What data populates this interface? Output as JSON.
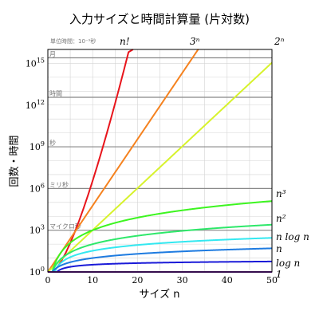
{
  "chart_data": {
    "type": "line",
    "title": "入力サイズと時間計算量 (片対数)",
    "xlabel": "サイズ n",
    "ylabel": "回数・時間",
    "y_scale": "log10",
    "xlim": [
      0,
      50
    ],
    "ylim_exponent": [
      0,
      16
    ],
    "x_ticks": [
      "0",
      "10",
      "20",
      "30",
      "40",
      "50"
    ],
    "y_ticks": [
      {
        "base": "10",
        "exp": "0"
      },
      {
        "base": "10",
        "exp": "3"
      },
      {
        "base": "10",
        "exp": "6"
      },
      {
        "base": "10",
        "exp": "9"
      },
      {
        "base": "10",
        "exp": "12"
      },
      {
        "base": "10",
        "exp": "15"
      }
    ],
    "grid": true,
    "note": "単位時間：10⁻⁹秒",
    "reference_lines": [
      {
        "label": "月",
        "log10_value": 15.4
      },
      {
        "label": "時間",
        "log10_value": 12.56
      },
      {
        "label": "秒",
        "log10_value": 9
      },
      {
        "label": "ミリ秒",
        "log10_value": 6
      },
      {
        "label": "マイクロ秒",
        "log10_value": 3
      }
    ],
    "series": [
      {
        "name": "n!",
        "formula": "factorial",
        "color": "#e8141b"
      },
      {
        "name": "3ⁿ",
        "formula": "exp3",
        "color": "#f5821f"
      },
      {
        "name": "2ⁿ",
        "formula": "exp2",
        "color": "#d7f22c"
      },
      {
        "name": "n³",
        "formula": "cube",
        "color": "#3df520"
      },
      {
        "name": "n²",
        "formula": "square",
        "color": "#2ee86a"
      },
      {
        "name": "n log n",
        "formula": "nlogn",
        "color": "#33e8f0"
      },
      {
        "name": "n",
        "formula": "linear",
        "color": "#1e7be0"
      },
      {
        "name": "log n",
        "formula": "log",
        "color": "#1a1ad8"
      },
      {
        "name": "1",
        "formula": "const",
        "color": "#6a1a9a"
      }
    ]
  }
}
